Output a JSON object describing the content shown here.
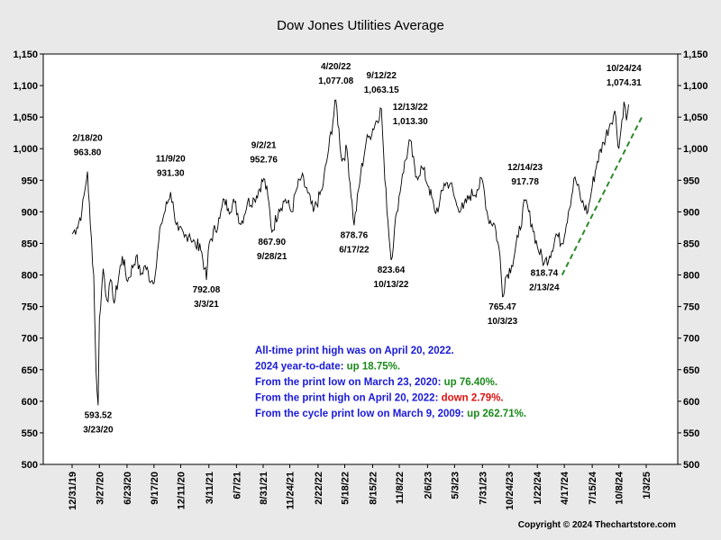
{
  "chart_data": {
    "type": "line",
    "title": "Dow Jones Utilities Average",
    "xlabel": "",
    "ylabel": "",
    "ylim": [
      500,
      1150
    ],
    "y_ticks": [
      500,
      550,
      600,
      650,
      700,
      750,
      800,
      850,
      900,
      950,
      1000,
      1050,
      1100,
      1150
    ],
    "y_tick_labels": [
      "500",
      "550",
      "600",
      "650",
      "700",
      "750",
      "800",
      "850",
      "900",
      "950",
      "1,000",
      "1,050",
      "1,100",
      "1,150"
    ],
    "x_tick_labels": [
      "12/31/19",
      "3/27/20",
      "6/23/20",
      "9/17/20",
      "12/11/20",
      "3/11/21",
      "6/7/21",
      "8/31/21",
      "11/24/21",
      "2/22/22",
      "5/18/22",
      "8/15/22",
      "11/8/22",
      "2/6/23",
      "5/3/23",
      "7/31/23",
      "10/24/23",
      "1/22/24",
      "4/17/24",
      "7/15/24",
      "10/8/24",
      "1/3/25"
    ],
    "grid": false,
    "series": [
      {
        "name": "",
        "color": "#000000",
        "points": [
          [
            "12/31/19",
            865
          ],
          [
            "1/15/20",
            875
          ],
          [
            "1/31/20",
            900
          ],
          [
            "2/10/20",
            935
          ],
          [
            "2/18/20",
            963.8
          ],
          [
            "2/27/20",
            880
          ],
          [
            "3/9/20",
            800
          ],
          [
            "3/16/20",
            650
          ],
          [
            "3/23/20",
            593.52
          ],
          [
            "3/27/20",
            730
          ],
          [
            "4/8/20",
            810
          ],
          [
            "4/20/20",
            760
          ],
          [
            "5/5/20",
            790
          ],
          [
            "5/13/20",
            755
          ],
          [
            "6/8/20",
            830
          ],
          [
            "6/25/20",
            790
          ],
          [
            "7/22/20",
            830
          ],
          [
            "8/5/20",
            800
          ],
          [
            "8/20/20",
            815
          ],
          [
            "9/8/20",
            790
          ],
          [
            "9/21/20",
            800
          ],
          [
            "10/9/20",
            880
          ],
          [
            "11/9/20",
            931.3
          ],
          [
            "11/20/20",
            900
          ],
          [
            "12/4/20",
            870
          ],
          [
            "12/23/20",
            860
          ],
          [
            "1/8/21",
            865
          ],
          [
            "1/28/21",
            845
          ],
          [
            "2/10/21",
            850
          ],
          [
            "2/26/21",
            810
          ],
          [
            "3/3/21",
            792.08
          ],
          [
            "3/12/21",
            850
          ],
          [
            "4/15/21",
            890
          ],
          [
            "4/29/21",
            920
          ],
          [
            "5/12/21",
            905
          ],
          [
            "6/1/21",
            915
          ],
          [
            "6/21/21",
            880
          ],
          [
            "7/12/21",
            915
          ],
          [
            "8/3/21",
            920
          ],
          [
            "9/2/21",
            952.76
          ],
          [
            "9/15/21",
            925
          ],
          [
            "9/28/21",
            867.9
          ],
          [
            "10/20/21",
            905
          ],
          [
            "11/10/21",
            920
          ],
          [
            "11/30/21",
            900
          ],
          [
            "12/15/21",
            935
          ],
          [
            "12/31/21",
            955
          ],
          [
            "1/20/22",
            930
          ],
          [
            "2/7/22",
            900
          ],
          [
            "3/7/22",
            935
          ],
          [
            "3/28/22",
            1000
          ],
          [
            "4/20/22",
            1077.08
          ],
          [
            "5/9/22",
            980
          ],
          [
            "5/25/22",
            1000
          ],
          [
            "6/17/22",
            878.76
          ],
          [
            "7/8/22",
            960
          ],
          [
            "7/25/22",
            1010
          ],
          [
            "8/5/22",
            1020
          ],
          [
            "9/12/22",
            1063.15
          ],
          [
            "9/23/22",
            950
          ],
          [
            "10/13/22",
            823.64
          ],
          [
            "10/31/22",
            900
          ],
          [
            "11/18/22",
            960
          ],
          [
            "12/13/22",
            1013.3
          ],
          [
            "12/30/22",
            955
          ],
          [
            "1/20/23",
            970
          ],
          [
            "2/10/23",
            940
          ],
          [
            "3/1/23",
            900
          ],
          [
            "3/15/23",
            910
          ],
          [
            "3/31/23",
            945
          ],
          [
            "4/20/23",
            945
          ],
          [
            "5/10/23",
            910
          ],
          [
            "5/31/23",
            905
          ],
          [
            "6/20/23",
            925
          ],
          [
            "7/14/23",
            935
          ],
          [
            "7/31/23",
            950
          ],
          [
            "8/18/23",
            890
          ],
          [
            "9/8/23",
            880
          ],
          [
            "9/25/23",
            830
          ],
          [
            "10/3/23",
            765.47
          ],
          [
            "10/12/23",
            795
          ],
          [
            "11/1/23",
            815
          ],
          [
            "11/22/23",
            860
          ],
          [
            "12/14/23",
            917.78
          ],
          [
            "1/5/24",
            880
          ],
          [
            "1/22/24",
            845
          ],
          [
            "2/13/24",
            818.74
          ],
          [
            "3/1/24",
            830
          ],
          [
            "3/22/24",
            865
          ],
          [
            "4/10/24",
            850
          ],
          [
            "4/30/24",
            900
          ],
          [
            "5/21/24",
            955
          ],
          [
            "6/12/24",
            915
          ],
          [
            "7/1/24",
            900
          ],
          [
            "7/15/24",
            940
          ],
          [
            "7/31/24",
            980
          ],
          [
            "8/20/24",
            1010
          ],
          [
            "9/10/24",
            1040
          ],
          [
            "9/25/24",
            1060
          ],
          [
            "10/8/24",
            1000
          ],
          [
            "10/24/24",
            1074.31
          ],
          [
            "11/1/24",
            1045
          ],
          [
            "11/8/24",
            1070
          ]
        ]
      }
    ],
    "trendline": {
      "color": "#2a8a2a",
      "from": [
        "4/10/24",
        800
      ],
      "to": [
        "12/20/24",
        1050
      ]
    },
    "annotations": [
      {
        "date": "2/18/20",
        "value": "963.80"
      },
      {
        "date": "3/23/20",
        "value": "593.52"
      },
      {
        "date": "11/9/20",
        "value": "931.30"
      },
      {
        "date": "3/3/21",
        "value": "792.08"
      },
      {
        "date": "9/2/21",
        "value": "952.76"
      },
      {
        "date": "9/28/21",
        "value": "867.90"
      },
      {
        "date": "4/20/22",
        "value": "1,077.08"
      },
      {
        "date": "6/17/22",
        "value": "878.76"
      },
      {
        "date": "9/12/22",
        "value": "1,063.15"
      },
      {
        "date": "10/13/22",
        "value": "823.64"
      },
      {
        "date": "12/13/22",
        "value": "1,013.30"
      },
      {
        "date": "10/3/23",
        "value": "765.47"
      },
      {
        "date": "12/14/23",
        "value": "917.78"
      },
      {
        "date": "2/13/24",
        "value": "818.74"
      },
      {
        "date": "10/24/24",
        "value": "1,074.31"
      }
    ],
    "notes": [
      {
        "text": "All-time print high was on April 20, 2022.",
        "highlight": "",
        "highlight_color": ""
      },
      {
        "text": "2024 year-to-date: ",
        "highlight": "up 18.75%.",
        "highlight_color": "#1a8a1a"
      },
      {
        "text": "From the print low on March 23, 2020:  ",
        "highlight": "up 76.40%.",
        "highlight_color": "#1a8a1a"
      },
      {
        "text": "From the print high on April 20, 2022:  ",
        "highlight": "down 2.79%.",
        "highlight_color": "#e01010"
      },
      {
        "text": "From the cycle print low on March 9, 2009:  ",
        "highlight": "up 262.71%.",
        "highlight_color": "#1a8a1a"
      }
    ],
    "notes_color": "#1a1ad8"
  },
  "copyright": "Copyright © 2024 Thechartstore.com"
}
